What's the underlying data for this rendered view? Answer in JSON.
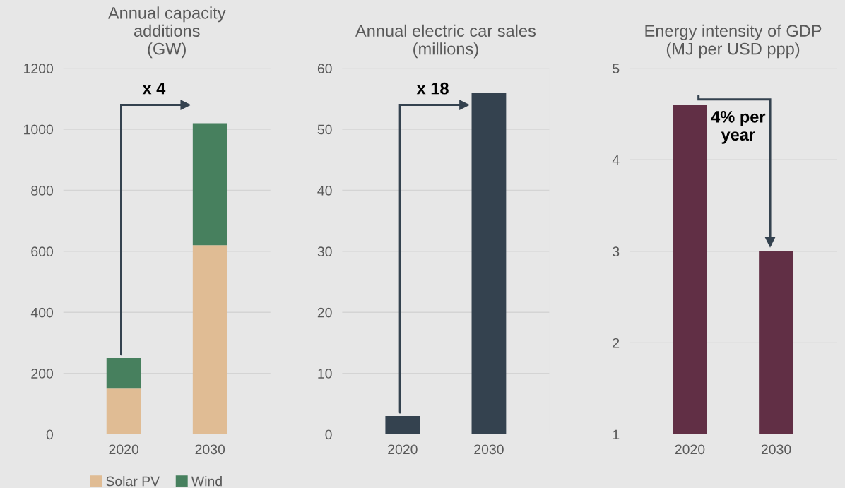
{
  "chart_data": [
    {
      "type": "bar",
      "title": "Annual capacity\nadditions\n(GW)",
      "categories": [
        "2020",
        "2030"
      ],
      "stacked": true,
      "ylim": [
        0,
        1200
      ],
      "yticks": [
        0,
        200,
        400,
        600,
        800,
        1000,
        1200
      ],
      "grid": "y",
      "legend": "bottom",
      "annotations": [
        "x 4"
      ],
      "series": [
        {
          "name": "Solar PV",
          "color": "#e0bc94",
          "values": [
            150,
            620
          ]
        },
        {
          "name": "Wind",
          "color": "#47805e",
          "values": [
            100,
            400
          ]
        }
      ]
    },
    {
      "type": "bar",
      "title": "Annual electric car sales\n(millions)",
      "categories": [
        "2020",
        "2030"
      ],
      "ylim": [
        0,
        60
      ],
      "yticks": [
        0,
        10,
        20,
        30,
        40,
        50,
        60
      ],
      "grid": "y",
      "annotations": [
        "x 18"
      ],
      "series": [
        {
          "color": "#34424f",
          "values": [
            3,
            56
          ]
        }
      ]
    },
    {
      "type": "bar",
      "title": "Energy intensity of GDP\n(MJ per USD ppp)",
      "categories": [
        "2020",
        "2030"
      ],
      "ylim": [
        1,
        5
      ],
      "yticks": [
        1,
        2,
        3,
        4,
        5
      ],
      "grid": "y",
      "annotations": [
        "4% per\nyear"
      ],
      "series": [
        {
          "color": "#612f45",
          "values": [
            4.6,
            3.0
          ]
        }
      ]
    }
  ]
}
